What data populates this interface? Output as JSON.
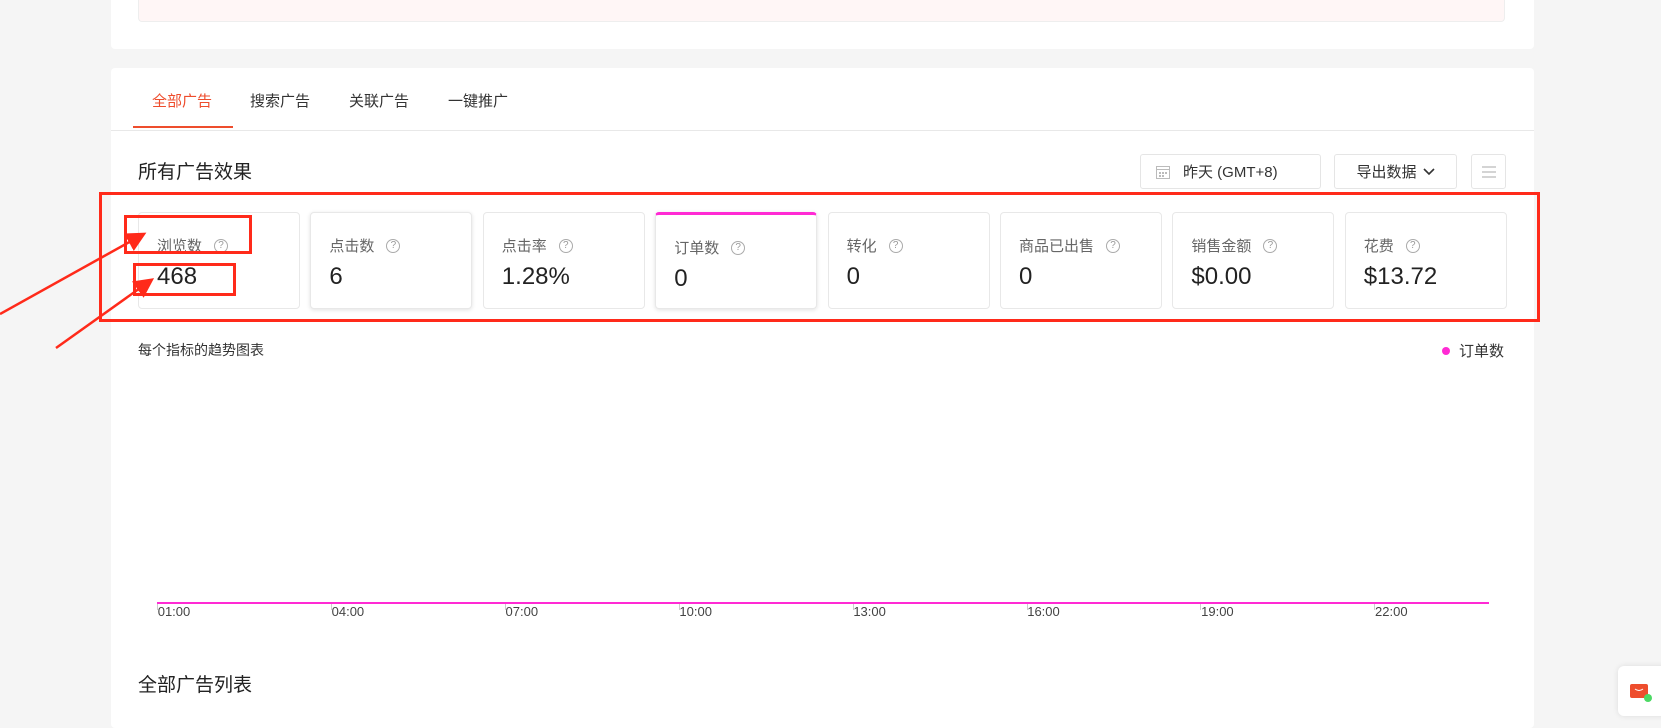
{
  "tabs": [
    {
      "label": "全部广告",
      "active": true
    },
    {
      "label": "搜索广告"
    },
    {
      "label": "关联广告"
    },
    {
      "label": "一键推广"
    }
  ],
  "section_title": "所有广告效果",
  "date_button": {
    "icon": "calendar-icon",
    "label": "昨天 (GMT+8)"
  },
  "export_button": {
    "label": "导出数据",
    "icon": "chevron-down-icon"
  },
  "menu_button": {
    "icon": "menu-icon"
  },
  "metrics": [
    {
      "label": "浏览数",
      "value": "468"
    },
    {
      "label": "点击数",
      "value": "6"
    },
    {
      "label": "点击率",
      "value": "1.28%"
    },
    {
      "label": "订单数",
      "value": "0"
    },
    {
      "label": "转化",
      "value": "0"
    },
    {
      "label": "商品已出售",
      "value": "0"
    },
    {
      "label": "销售金额",
      "value": "$0.00"
    },
    {
      "label": "花费",
      "value": "$13.72"
    }
  ],
  "chart_data": {
    "type": "line",
    "title": "每个指标的趋势图表",
    "categories": [
      "01:00",
      "04:00",
      "07:00",
      "10:00",
      "13:00",
      "16:00",
      "19:00",
      "22:00"
    ],
    "series": [
      {
        "name": "订单数",
        "color": "#ff2ad4",
        "values": [
          0,
          0,
          0,
          0,
          0,
          0,
          0,
          0
        ]
      }
    ],
    "legend": "top-right"
  },
  "list_title": "全部广告列表",
  "colors": {
    "accent": "#ee4d2d",
    "series": "#ff2ad4",
    "annotation": "#ff2a1a"
  }
}
